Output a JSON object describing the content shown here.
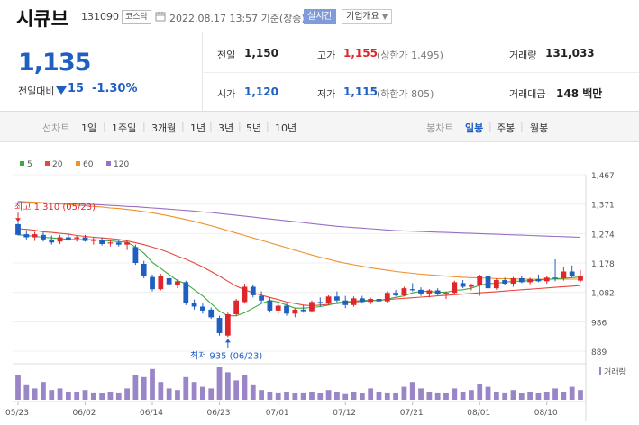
{
  "header": {
    "name": "시큐브",
    "code": "131090",
    "market": "코스닥",
    "datetime": "2022.08.17 13:57 기준(장중)",
    "live_label": "실시간",
    "info_label": "기업개요"
  },
  "price": {
    "current": "1,135",
    "change_label": "전일대비",
    "change": "15",
    "change_pct": "-1.30%"
  },
  "stats": {
    "prev_label": "전일",
    "prev": "1,150",
    "high_label": "고가",
    "high": "1,155",
    "high_limit": "(상한가 1,495)",
    "volume_label": "거래량",
    "volume": "131,033",
    "open_label": "시가",
    "open": "1,120",
    "low_label": "저가",
    "low": "1,115",
    "low_limit": "(하한가 805)",
    "amount_label": "거래대금",
    "amount": "148 백만"
  },
  "periods": {
    "line_label": "선차트",
    "items": [
      "1일",
      "1주일",
      "3개월",
      "1년",
      "3년",
      "5년",
      "10년"
    ],
    "candle_label": "봉차트",
    "candle_items": [
      "일봉",
      "주봉",
      "월봉"
    ],
    "selected_candle": "일봉"
  },
  "chart_data": {
    "type": "candlestick",
    "legend": [
      {
        "name": "5",
        "color": "#3cab3c"
      },
      {
        "name": "20",
        "color": "#e8473d"
      },
      {
        "name": "60",
        "color": "#f0902a"
      },
      {
        "name": "120",
        "color": "#9b6fc4"
      }
    ],
    "y_ticks": [
      "1,467",
      "1,371",
      "1,274",
      "1,178",
      "1,082",
      "986",
      "889"
    ],
    "ylim": [
      889,
      1467
    ],
    "x_ticks": [
      "05/23",
      "06/02",
      "06/14",
      "06/23",
      "07/01",
      "07/12",
      "07/21",
      "08/01",
      "08/10"
    ],
    "volume_label": "거래량",
    "high_annotation": "최고 1,310 (05/23)",
    "low_annotation": "최저 935 (06/23)",
    "candles": [
      {
        "o": 1305,
        "h": 1310,
        "l": 1268,
        "c": 1270
      },
      {
        "o": 1272,
        "h": 1285,
        "l": 1255,
        "c": 1262
      },
      {
        "o": 1262,
        "h": 1280,
        "l": 1250,
        "c": 1272
      },
      {
        "o": 1270,
        "h": 1278,
        "l": 1248,
        "c": 1255
      },
      {
        "o": 1255,
        "h": 1268,
        "l": 1238,
        "c": 1245
      },
      {
        "o": 1248,
        "h": 1270,
        "l": 1240,
        "c": 1262
      },
      {
        "o": 1262,
        "h": 1275,
        "l": 1250,
        "c": 1255
      },
      {
        "o": 1258,
        "h": 1268,
        "l": 1248,
        "c": 1262
      },
      {
        "o": 1262,
        "h": 1270,
        "l": 1248,
        "c": 1250
      },
      {
        "o": 1250,
        "h": 1262,
        "l": 1238,
        "c": 1255
      },
      {
        "o": 1252,
        "h": 1262,
        "l": 1235,
        "c": 1240
      },
      {
        "o": 1242,
        "h": 1252,
        "l": 1232,
        "c": 1245
      },
      {
        "o": 1245,
        "h": 1255,
        "l": 1232,
        "c": 1238
      },
      {
        "o": 1238,
        "h": 1250,
        "l": 1220,
        "c": 1245
      },
      {
        "o": 1230,
        "h": 1238,
        "l": 1172,
        "c": 1178
      },
      {
        "o": 1175,
        "h": 1185,
        "l": 1128,
        "c": 1135
      },
      {
        "o": 1132,
        "h": 1140,
        "l": 1085,
        "c": 1092
      },
      {
        "o": 1092,
        "h": 1142,
        "l": 1088,
        "c": 1135
      },
      {
        "o": 1128,
        "h": 1135,
        "l": 1102,
        "c": 1108
      },
      {
        "o": 1105,
        "h": 1125,
        "l": 1095,
        "c": 1118
      },
      {
        "o": 1115,
        "h": 1120,
        "l": 1040,
        "c": 1048
      },
      {
        "o": 1048,
        "h": 1058,
        "l": 1025,
        "c": 1035
      },
      {
        "o": 1035,
        "h": 1045,
        "l": 1012,
        "c": 1022
      },
      {
        "o": 1025,
        "h": 1032,
        "l": 995,
        "c": 1000
      },
      {
        "o": 998,
        "h": 1005,
        "l": 940,
        "c": 948
      },
      {
        "o": 940,
        "h": 1015,
        "l": 935,
        "c": 1010
      },
      {
        "o": 1010,
        "h": 1060,
        "l": 1005,
        "c": 1055
      },
      {
        "o": 1050,
        "h": 1110,
        "l": 1045,
        "c": 1100
      },
      {
        "o": 1100,
        "h": 1108,
        "l": 1065,
        "c": 1072
      },
      {
        "o": 1070,
        "h": 1085,
        "l": 1048,
        "c": 1055
      },
      {
        "o": 1055,
        "h": 1065,
        "l": 1015,
        "c": 1022
      },
      {
        "o": 1022,
        "h": 1045,
        "l": 1010,
        "c": 1038
      },
      {
        "o": 1038,
        "h": 1045,
        "l": 1005,
        "c": 1012
      },
      {
        "o": 1012,
        "h": 1030,
        "l": 1000,
        "c": 1025
      },
      {
        "o": 1025,
        "h": 1040,
        "l": 1015,
        "c": 1020
      },
      {
        "o": 1020,
        "h": 1055,
        "l": 1015,
        "c": 1050
      },
      {
        "o": 1050,
        "h": 1065,
        "l": 1035,
        "c": 1045
      },
      {
        "o": 1045,
        "h": 1072,
        "l": 1040,
        "c": 1068
      },
      {
        "o": 1068,
        "h": 1085,
        "l": 1050,
        "c": 1055
      },
      {
        "o": 1055,
        "h": 1070,
        "l": 1030,
        "c": 1040
      },
      {
        "o": 1040,
        "h": 1068,
        "l": 1035,
        "c": 1062
      },
      {
        "o": 1062,
        "h": 1070,
        "l": 1045,
        "c": 1050
      },
      {
        "o": 1050,
        "h": 1065,
        "l": 1042,
        "c": 1060
      },
      {
        "o": 1060,
        "h": 1068,
        "l": 1045,
        "c": 1052
      },
      {
        "o": 1052,
        "h": 1085,
        "l": 1048,
        "c": 1080
      },
      {
        "o": 1080,
        "h": 1090,
        "l": 1068,
        "c": 1072
      },
      {
        "o": 1072,
        "h": 1100,
        "l": 1068,
        "c": 1095
      },
      {
        "o": 1092,
        "h": 1112,
        "l": 1085,
        "c": 1090
      },
      {
        "o": 1090,
        "h": 1098,
        "l": 1070,
        "c": 1078
      },
      {
        "o": 1078,
        "h": 1092,
        "l": 1065,
        "c": 1088
      },
      {
        "o": 1088,
        "h": 1095,
        "l": 1072,
        "c": 1075
      },
      {
        "o": 1075,
        "h": 1085,
        "l": 1060,
        "c": 1080
      },
      {
        "o": 1080,
        "h": 1120,
        "l": 1075,
        "c": 1115
      },
      {
        "o": 1112,
        "h": 1122,
        "l": 1095,
        "c": 1100
      },
      {
        "o": 1100,
        "h": 1110,
        "l": 1088,
        "c": 1105
      },
      {
        "o": 1105,
        "h": 1140,
        "l": 1070,
        "c": 1135
      },
      {
        "o": 1135,
        "h": 1142,
        "l": 1090,
        "c": 1095
      },
      {
        "o": 1095,
        "h": 1128,
        "l": 1090,
        "c": 1122
      },
      {
        "o": 1122,
        "h": 1130,
        "l": 1105,
        "c": 1110
      },
      {
        "o": 1110,
        "h": 1132,
        "l": 1100,
        "c": 1128
      },
      {
        "o": 1128,
        "h": 1135,
        "l": 1112,
        "c": 1115
      },
      {
        "o": 1115,
        "h": 1130,
        "l": 1108,
        "c": 1125
      },
      {
        "o": 1125,
        "h": 1140,
        "l": 1115,
        "c": 1118
      },
      {
        "o": 1118,
        "h": 1135,
        "l": 1110,
        "c": 1130
      },
      {
        "o": 1130,
        "h": 1190,
        "l": 1118,
        "c": 1128
      },
      {
        "o": 1128,
        "h": 1165,
        "l": 1120,
        "c": 1150
      },
      {
        "o": 1150,
        "h": 1170,
        "l": 1130,
        "c": 1135
      },
      {
        "o": 1120,
        "h": 1155,
        "l": 1115,
        "c": 1135
      }
    ],
    "volumes": [
      30,
      18,
      14,
      22,
      12,
      14,
      10,
      10,
      12,
      9,
      8,
      10,
      9,
      14,
      30,
      28,
      38,
      22,
      14,
      12,
      28,
      22,
      16,
      14,
      40,
      34,
      24,
      30,
      18,
      12,
      10,
      9,
      10,
      8,
      9,
      10,
      8,
      12,
      10,
      7,
      10,
      8,
      14,
      10,
      9,
      8,
      16,
      22,
      14,
      10,
      9,
      8,
      14,
      10,
      12,
      20,
      16,
      10,
      9,
      12,
      8,
      10,
      8,
      10,
      14,
      10,
      16,
      12
    ],
    "ma5": [
      1270,
      1268,
      1265,
      1262,
      1260,
      1258,
      1255,
      1255,
      1254,
      1254,
      1252,
      1250,
      1248,
      1246,
      1230,
      1210,
      1180,
      1160,
      1140,
      1120,
      1110,
      1090,
      1070,
      1045,
      1020,
      1005,
      1005,
      1015,
      1030,
      1045,
      1055,
      1050,
      1040,
      1030,
      1030,
      1032,
      1035,
      1040,
      1048,
      1050,
      1053,
      1055,
      1056,
      1055,
      1060,
      1065,
      1070,
      1080,
      1085,
      1085,
      1082,
      1082,
      1088,
      1090,
      1095,
      1105,
      1110,
      1112,
      1115,
      1118,
      1118,
      1120,
      1122,
      1124,
      1126,
      1128,
      1130,
      1132
    ],
    "ma20": [
      1290,
      1288,
      1285,
      1280,
      1278,
      1275,
      1272,
      1268,
      1265,
      1262,
      1260,
      1258,
      1255,
      1250,
      1244,
      1238,
      1230,
      1222,
      1212,
      1200,
      1190,
      1178,
      1165,
      1150,
      1135,
      1118,
      1102,
      1090,
      1080,
      1072,
      1065,
      1058,
      1050,
      1045,
      1040,
      1038,
      1040,
      1042,
      1045,
      1048,
      1050,
      1052,
      1054,
      1056,
      1058,
      1060,
      1062,
      1064,
      1066,
      1068,
      1070,
      1072,
      1074,
      1076,
      1078,
      1080,
      1082,
      1084,
      1086,
      1088,
      1090,
      1092,
      1094,
      1096,
      1098,
      1100,
      1102,
      1104
    ],
    "ma60": [
      1380,
      1378,
      1377,
      1375,
      1373,
      1371,
      1369,
      1367,
      1365,
      1363,
      1361,
      1358,
      1356,
      1353,
      1350,
      1346,
      1342,
      1337,
      1332,
      1326,
      1320,
      1314,
      1307,
      1300,
      1292,
      1284,
      1276,
      1268,
      1260,
      1252,
      1244,
      1236,
      1228,
      1220,
      1212,
      1204,
      1197,
      1190,
      1183,
      1177,
      1172,
      1167,
      1162,
      1158,
      1154,
      1150,
      1147,
      1144,
      1141,
      1139,
      1137,
      1135,
      1133,
      1131,
      1130,
      1129,
      1128,
      1127,
      1126,
      1126,
      1125,
      1125,
      1125,
      1125,
      1125,
      1125,
      1125,
      1125
    ],
    "ma120": [
      1378,
      1377,
      1376,
      1375,
      1374,
      1373,
      1372,
      1371,
      1370,
      1369,
      1368,
      1366,
      1365,
      1363,
      1362,
      1360,
      1358,
      1356,
      1354,
      1352,
      1350,
      1348,
      1345,
      1343,
      1340,
      1337,
      1334,
      1331,
      1328,
      1325,
      1322,
      1319,
      1316,
      1313,
      1310,
      1307,
      1304,
      1301,
      1298,
      1296,
      1294,
      1292,
      1290,
      1288,
      1286,
      1284,
      1283,
      1282,
      1281,
      1280,
      1279,
      1278,
      1277,
      1276,
      1275,
      1274,
      1273,
      1272,
      1271,
      1270,
      1269,
      1268,
      1267,
      1266,
      1265,
      1264,
      1263,
      1262
    ]
  }
}
